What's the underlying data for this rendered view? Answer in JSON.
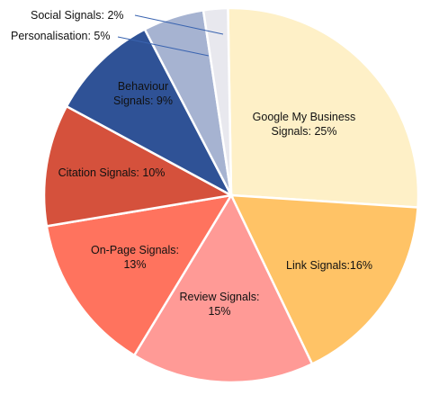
{
  "chart_data": {
    "type": "pie",
    "title": "",
    "slices": [
      {
        "name": "Google My Business Signals",
        "value": 25,
        "label_lines": [
          "Google My Business",
          "Signals: 25%"
        ],
        "color": "#FEF0C7",
        "label_color": "#111111"
      },
      {
        "name": "Link Signals",
        "value": 16,
        "label_lines": [
          "Link Signals:16%"
        ],
        "color": "#FFC366",
        "label_color": "#111111"
      },
      {
        "name": "Review Signals",
        "value": 15,
        "label_lines": [
          "Review Signals:",
          "15%"
        ],
        "color": "#FF9A96",
        "label_color": "#111111"
      },
      {
        "name": "On-Page Signals",
        "value": 13,
        "label_lines": [
          "On-Page Signals:",
          "13%"
        ],
        "color": "#FF735E",
        "label_color": "#111111"
      },
      {
        "name": "Citation Signals",
        "value": 10,
        "label_lines": [
          "Citation Signals: 10%"
        ],
        "color": "#D5513C",
        "label_color": "#111111"
      },
      {
        "name": "Behaviour Signals",
        "value": 9,
        "label_lines": [
          "Behaviour",
          "Signals: 9%"
        ],
        "color": "#2F5296",
        "label_color": "#111111"
      },
      {
        "name": "Personalisation",
        "value": 5,
        "label_lines": [
          "Personalisation: 5%"
        ],
        "color": "#A6B3D1",
        "label_color": "#111111"
      },
      {
        "name": "Social Signals",
        "value": 2,
        "label_lines": [
          "Social Signals: 2%"
        ],
        "color": "#E8E8EE",
        "label_color": "#111111"
      }
    ]
  }
}
